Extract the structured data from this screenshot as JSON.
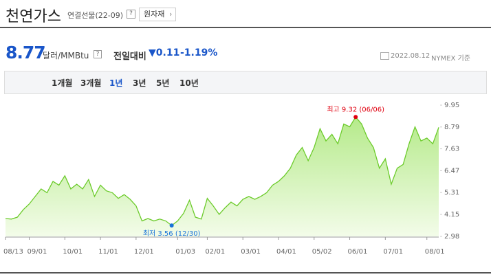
{
  "header": {
    "title": "천연가스",
    "subtitle": "연결선물(22-09)",
    "help": "?",
    "button": "원자재"
  },
  "quote": {
    "price": "8.77",
    "unit": "달러/MMBtu",
    "unit_help": "?",
    "change_label": "전일대비",
    "change": "0.11",
    "change_rate": "-1.19%",
    "date": "2022.08.12",
    "source": "NYMEX 기준"
  },
  "tabs": [
    "1개월",
    "3개월",
    "1년",
    "3년",
    "5년",
    "10년"
  ],
  "active_tab": "1년",
  "chart_data": {
    "type": "area",
    "categories": [
      "08/13",
      null,
      null,
      null,
      "09/01",
      null,
      null,
      null,
      null,
      null,
      "10/01",
      null,
      null,
      null,
      null,
      null,
      "11/01",
      null,
      null,
      null,
      null,
      null,
      "12/01",
      null,
      null,
      null,
      null,
      null,
      null,
      "01/03",
      null,
      null,
      null,
      null,
      "02/01",
      null,
      null,
      null,
      null,
      null,
      "03/01",
      null,
      null,
      null,
      null,
      null,
      "04/01",
      null,
      null,
      null,
      null,
      null,
      "05/02",
      null,
      null,
      null,
      null,
      null,
      "06/01",
      null,
      null,
      null,
      null,
      null,
      "07/01",
      null,
      null,
      null,
      null,
      null,
      null,
      "08/01",
      null,
      null
    ],
    "values": [
      3.93,
      3.9,
      4.0,
      4.4,
      4.7,
      5.1,
      5.5,
      5.3,
      5.9,
      5.7,
      6.2,
      5.5,
      5.75,
      5.5,
      6.0,
      5.1,
      5.7,
      5.4,
      5.3,
      5.0,
      5.2,
      4.95,
      4.6,
      3.8,
      3.93,
      3.8,
      3.9,
      3.8,
      3.56,
      3.8,
      4.2,
      4.9,
      4.0,
      3.9,
      5.0,
      4.6,
      4.15,
      4.5,
      4.8,
      4.6,
      4.95,
      5.1,
      4.95,
      5.1,
      5.3,
      5.7,
      5.9,
      6.2,
      6.6,
      7.3,
      7.7,
      7.0,
      7.7,
      8.7,
      8.05,
      8.4,
      7.9,
      8.95,
      8.8,
      9.32,
      8.95,
      8.2,
      7.7,
      6.6,
      7.1,
      5.75,
      6.6,
      6.8,
      7.9,
      8.8,
      8.05,
      8.2,
      7.9,
      8.77
    ],
    "color": "#6ccb2b",
    "ylim": [
      2.98,
      9.95
    ],
    "yticks": [
      9.95,
      8.79,
      7.63,
      6.47,
      5.31,
      4.15,
      2.98
    ],
    "high_label": "최고 9.32 (06/06)",
    "high_color": "#e0000f",
    "low_label": "최저 3.56 (12/30)",
    "low_color": "#1a73d9"
  }
}
